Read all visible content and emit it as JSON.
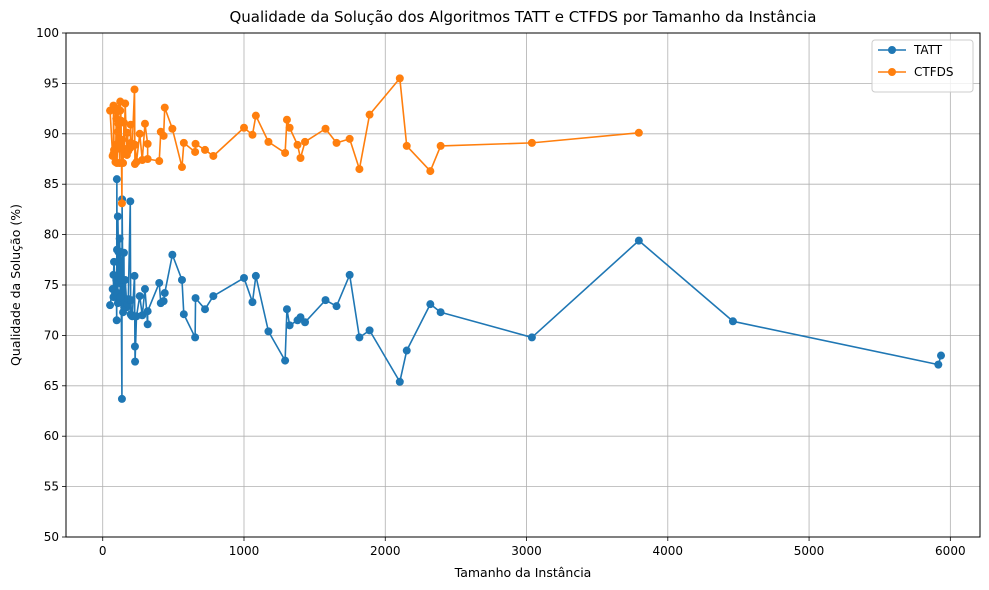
{
  "chart_data": {
    "type": "line",
    "title": "Qualidade da Solução dos Algoritmos TATT e CTFDS por Tamanho da Instância",
    "xlabel": "Tamanho da Instância",
    "ylabel": "Qualidade da Solução (%)",
    "xlim": [
      -260,
      6210
    ],
    "ylim": [
      50,
      100
    ],
    "xticks": [
      0,
      1000,
      2000,
      3000,
      4000,
      5000,
      6000
    ],
    "yticks": [
      50,
      55,
      60,
      65,
      70,
      75,
      80,
      85,
      90,
      95,
      100
    ],
    "grid": true,
    "legend_position": "top-right",
    "series": [
      {
        "name": "TATT",
        "color": "#1f77b4",
        "x": [
          52,
          70,
          76,
          76,
          80,
          90,
          96,
          99,
          100,
          101,
          105,
          107,
          107,
          111,
          117,
          120,
          124,
          124,
          130,
          136,
          137,
          144,
          150,
          152,
          159,
          171,
          175,
          181,
          195,
          198,
          200,
          202,
          209,
          225,
          228,
          229,
          239,
          262,
          280,
          299,
          318,
          318,
          400,
          411,
          431,
          439,
          493,
          561,
          574,
          654,
          657,
          724,
          783,
          1000,
          1060,
          1084,
          1173,
          1291,
          1304,
          1323,
          1379,
          1400,
          1432,
          1577,
          1655,
          1748,
          1817,
          1889,
          2103,
          2152,
          2319,
          2392,
          3038,
          3795,
          4461,
          5915,
          5934
        ],
        "y": [
          73.0,
          74.6,
          73.8,
          76.0,
          77.3,
          74.0,
          75.5,
          71.5,
          85.5,
          78.5,
          74.2,
          73.2,
          81.8,
          78.3,
          75.2,
          79.6,
          73.8,
          78.3,
          75.5,
          63.7,
          83.5,
          72.3,
          78.2,
          72.8,
          75.5,
          72.8,
          73.1,
          73.6,
          83.3,
          72.1,
          73.5,
          72.0,
          71.9,
          75.9,
          68.9,
          67.4,
          71.9,
          73.9,
          72.0,
          74.6,
          71.1,
          72.4,
          75.2,
          73.2,
          73.4,
          74.2,
          78.0,
          75.5,
          72.1,
          69.8,
          73.7,
          72.6,
          73.9,
          75.7,
          73.3,
          75.9,
          70.4,
          67.5,
          72.6,
          71.0,
          71.5,
          71.8,
          71.3,
          73.5,
          72.9,
          76.0,
          69.8,
          70.5,
          65.4,
          68.5,
          73.1,
          72.3,
          69.8,
          79.4,
          71.4,
          67.1,
          68.0
        ]
      },
      {
        "name": "CTFDS",
        "color": "#ff7f0e",
        "x": [
          52,
          70,
          76,
          76,
          80,
          90,
          96,
          99,
          100,
          101,
          105,
          107,
          107,
          111,
          117,
          120,
          124,
          124,
          130,
          136,
          137,
          144,
          150,
          152,
          159,
          171,
          175,
          181,
          195,
          198,
          200,
          202,
          209,
          225,
          228,
          229,
          239,
          262,
          280,
          299,
          318,
          318,
          400,
          411,
          431,
          439,
          493,
          561,
          574,
          654,
          657,
          724,
          783,
          1000,
          1060,
          1084,
          1173,
          1291,
          1304,
          1323,
          1379,
          1400,
          1432,
          1577,
          1655,
          1748,
          1817,
          1889,
          2103,
          2152,
          2319,
          2392,
          3038,
          3795
        ],
        "y": [
          92.3,
          87.8,
          88.0,
          92.8,
          88.4,
          87.2,
          91.5,
          88.5,
          92.2,
          87.1,
          89.0,
          90.2,
          92.5,
          91.0,
          88.8,
          87.1,
          92.3,
          93.2,
          91.3,
          83.1,
          89.4,
          87.1,
          91.1,
          88.5,
          93.0,
          87.9,
          90.1,
          88.3,
          88.6,
          90.9,
          89.1,
          89.0,
          88.8,
          94.4,
          87.0,
          88.9,
          87.2,
          90.0,
          87.4,
          91.0,
          89.0,
          87.5,
          87.3,
          90.2,
          89.8,
          92.6,
          90.5,
          86.7,
          89.1,
          88.2,
          89.0,
          88.4,
          87.8,
          90.6,
          89.9,
          91.8,
          89.2,
          88.1,
          91.4,
          90.6,
          88.9,
          87.6,
          89.2,
          90.5,
          89.1,
          89.5,
          86.5,
          91.9,
          95.5,
          88.8,
          86.3,
          88.8,
          89.1,
          90.1
        ]
      }
    ]
  }
}
